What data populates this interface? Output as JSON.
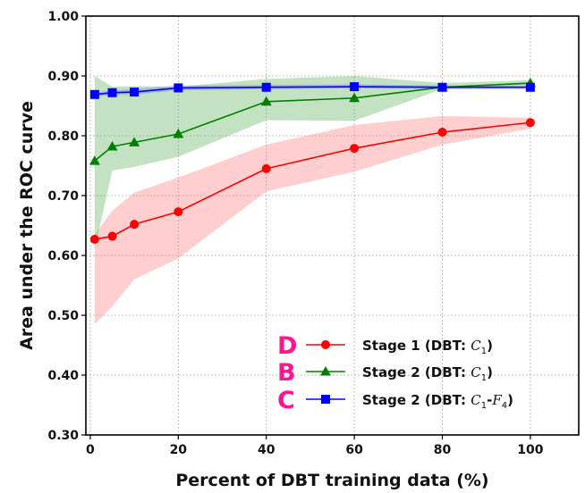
{
  "chart_data": {
    "type": "line",
    "xlabel": "Percent of DBT training data (%)",
    "ylabel": "Area under the ROC curve",
    "xlim": [
      -1,
      111
    ],
    "ylim": [
      0.3,
      1.0
    ],
    "x_ticks": [
      0,
      20,
      40,
      60,
      80,
      100
    ],
    "y_ticks": [
      0.3,
      0.4,
      0.5,
      0.6,
      0.7,
      0.8,
      0.9,
      1.0
    ],
    "y_tick_labels": [
      "0.30",
      "0.40",
      "0.50",
      "0.60",
      "0.70",
      "0.80",
      "0.90",
      "1.00"
    ],
    "grid": true,
    "legend_placement": "lower-right",
    "series": [
      {
        "name": "Stage 1 (DBT: C1)",
        "letter": "D",
        "color": "#ff0000",
        "band_color": "#ff8080",
        "marker": "circle",
        "x": [
          1,
          5,
          10,
          20,
          40,
          60,
          80,
          100
        ],
        "values": [
          0.627,
          0.632,
          0.652,
          0.673,
          0.745,
          0.779,
          0.806,
          0.822
        ],
        "lower": [
          0.485,
          0.515,
          0.56,
          0.595,
          0.707,
          0.74,
          0.785,
          0.812
        ],
        "upper": [
          0.635,
          0.675,
          0.705,
          0.73,
          0.785,
          0.818,
          0.833,
          0.83
        ]
      },
      {
        "name": "Stage 2 (DBT: C1)",
        "letter": "B",
        "color": "#008000",
        "band_color": "#5fb35f",
        "marker": "triangle",
        "x": [
          1,
          5,
          10,
          20,
          40,
          60,
          80,
          100
        ],
        "values": [
          0.758,
          0.782,
          0.789,
          0.803,
          0.857,
          0.863,
          0.881,
          0.888
        ],
        "lower": [
          0.61,
          0.742,
          0.748,
          0.765,
          0.826,
          0.825,
          0.878,
          0.883
        ],
        "upper": [
          0.9,
          0.882,
          0.883,
          0.882,
          0.895,
          0.9,
          0.888,
          0.893
        ]
      },
      {
        "name": "Stage 2 (DBT: C1-F4)",
        "letter": "C",
        "color": "#0000ff",
        "band_color": "#7070ff",
        "marker": "square",
        "x": [
          1,
          5,
          10,
          20,
          40,
          60,
          80,
          100
        ],
        "values": [
          0.869,
          0.872,
          0.873,
          0.88,
          0.881,
          0.882,
          0.881,
          0.881
        ],
        "lower": [
          0.865,
          0.868,
          0.869,
          0.876,
          0.878,
          0.879,
          0.878,
          0.878
        ],
        "upper": [
          0.873,
          0.876,
          0.878,
          0.884,
          0.885,
          0.886,
          0.884,
          0.884
        ]
      }
    ],
    "legend": [
      {
        "letter": "D",
        "text": "Stage 1 (DBT: ",
        "sub_main": "C",
        "sub_index": "1",
        "suffix": ")"
      },
      {
        "letter": "B",
        "text": "Stage 2 (DBT: ",
        "sub_main": "C",
        "sub_index": "1",
        "suffix": ")"
      },
      {
        "letter": "C",
        "text": "Stage 2 (DBT: ",
        "sub_main": "C",
        "sub_index": "1",
        "mid": "-",
        "sub_main2": "F",
        "sub_index2": "4",
        "suffix": ")"
      }
    ],
    "letter_color": "#ff1493"
  }
}
